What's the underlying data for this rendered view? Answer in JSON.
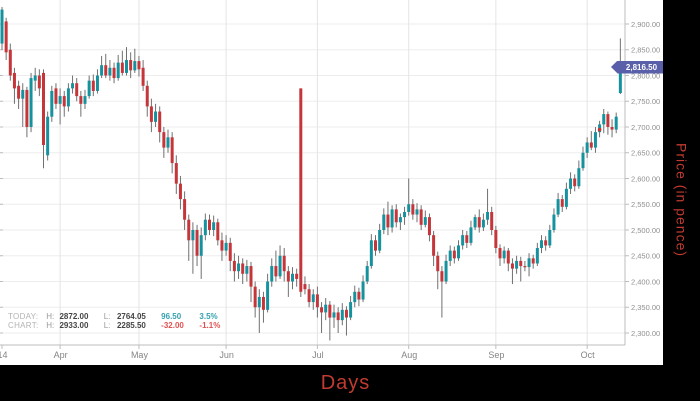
{
  "axis_titles": {
    "x": "Days",
    "y": "Price (in pence)"
  },
  "last_price_label": "2,816.50",
  "legend": {
    "rows": [
      {
        "name": "TODAY:",
        "high_label": "H:",
        "high": "2872.00",
        "low_label": "L:",
        "low": "2764.05",
        "change": "96.50",
        "change_pct": "3.5%",
        "direction": "up"
      },
      {
        "name": "CHART:",
        "high_label": "H:",
        "high": "2933.00",
        "low_label": "L:",
        "low": "2285.50",
        "change": "-32.00",
        "change_pct": "-1.1%",
        "direction": "down"
      }
    ]
  },
  "colors": {
    "up": "#15929e",
    "down": "#c5363a",
    "wick": "#707070",
    "marker": "#d03231",
    "grid_h": "#ededed",
    "grid_v": "#e4e4e4",
    "axis_line": "#bdbdbd",
    "tick_text": "#8f8f8f",
    "month_text": "#858585",
    "badge_bg": "#5a5fa9",
    "badge_text": "#ffffff",
    "axis_title": "#c23a30",
    "frame_bg": "#000000",
    "plot_bg": "#ffffff",
    "legend_label": "#b3b3b3",
    "legend_hl": "#9a9a9a",
    "legend_value": "#454545",
    "legend_up": "#35a0b0",
    "legend_down": "#e05252"
  },
  "chart_data": {
    "type": "candlestick",
    "title": "",
    "xlabel": "Days",
    "ylabel": "Price (in pence)",
    "x_unit": "trading-day",
    "ylim": [
      2281,
      2947
    ],
    "grid": true,
    "legend_position": "bottom-left",
    "y_axis_side": "right",
    "last_price": 2816.5,
    "today_high": 2872.0,
    "today_low": 2764.05,
    "today_change": 96.5,
    "today_change_pct": 3.5,
    "chart_high": 2933.0,
    "chart_low": 2285.5,
    "chart_change": -32.0,
    "chart_change_pct": -1.1,
    "y_ticks": [
      {
        "value": 2900,
        "label": "2,900.00"
      },
      {
        "value": 2850,
        "label": "2,850.00"
      },
      {
        "value": 2800,
        "label": "2,800.00"
      },
      {
        "value": 2750,
        "label": "2,750.00"
      },
      {
        "value": 2700,
        "label": "2,700.00"
      },
      {
        "value": 2650,
        "label": "2,650.00"
      },
      {
        "value": 2600,
        "label": "2,600.00"
      },
      {
        "value": 2550,
        "label": "2,550.00"
      },
      {
        "value": 2500,
        "label": "2,500.00"
      },
      {
        "value": 2450,
        "label": "2,450.00"
      },
      {
        "value": 2400,
        "label": "2,400.00"
      },
      {
        "value": 2350,
        "label": "2,350.00"
      },
      {
        "value": 2300,
        "label": "2,300.00"
      }
    ],
    "x_ticks": [
      {
        "label": "14",
        "index": 0,
        "gridline": false
      },
      {
        "label": "Apr",
        "index": 14,
        "gridline": true
      },
      {
        "label": "May",
        "index": 33,
        "gridline": true
      },
      {
        "label": "Jun",
        "index": 54,
        "gridline": true
      },
      {
        "label": "Jul",
        "index": 76,
        "gridline": true
      },
      {
        "label": "Aug",
        "index": 98,
        "gridline": true
      },
      {
        "label": "Sep",
        "index": 119,
        "gridline": true
      },
      {
        "label": "Oct",
        "index": 141,
        "gridline": true
      }
    ],
    "marker": {
      "index": 144,
      "price": 2695
    },
    "candles_format": [
      "open",
      "high",
      "low",
      "close"
    ],
    "candles": [
      [
        2862,
        2933,
        2850,
        2928
      ],
      [
        2905,
        2912,
        2830,
        2845
      ],
      [
        2850,
        2862,
        2790,
        2800
      ],
      [
        2805,
        2815,
        2745,
        2775
      ],
      [
        2780,
        2790,
        2735,
        2755
      ],
      [
        2755,
        2785,
        2700,
        2772
      ],
      [
        2772,
        2778,
        2680,
        2700
      ],
      [
        2700,
        2805,
        2690,
        2795
      ],
      [
        2790,
        2815,
        2770,
        2800
      ],
      [
        2800,
        2812,
        2760,
        2775
      ],
      [
        2805,
        2812,
        2620,
        2665
      ],
      [
        2645,
        2730,
        2635,
        2720
      ],
      [
        2720,
        2780,
        2710,
        2770
      ],
      [
        2775,
        2785,
        2735,
        2745
      ],
      [
        2745,
        2775,
        2705,
        2760
      ],
      [
        2760,
        2770,
        2720,
        2740
      ],
      [
        2740,
        2785,
        2730,
        2775
      ],
      [
        2775,
        2800,
        2765,
        2785
      ],
      [
        2785,
        2795,
        2750,
        2760
      ],
      [
        2760,
        2770,
        2720,
        2745
      ],
      [
        2745,
        2772,
        2735,
        2760
      ],
      [
        2760,
        2800,
        2755,
        2790
      ],
      [
        2790,
        2802,
        2760,
        2770
      ],
      [
        2770,
        2812,
        2765,
        2800
      ],
      [
        2800,
        2838,
        2795,
        2820
      ],
      [
        2820,
        2842,
        2795,
        2800
      ],
      [
        2800,
        2830,
        2790,
        2815
      ],
      [
        2815,
        2825,
        2785,
        2795
      ],
      [
        2795,
        2840,
        2790,
        2825
      ],
      [
        2825,
        2848,
        2800,
        2805
      ],
      [
        2805,
        2855,
        2800,
        2830
      ],
      [
        2830,
        2845,
        2795,
        2810
      ],
      [
        2810,
        2852,
        2805,
        2828
      ],
      [
        2828,
        2838,
        2798,
        2812
      ],
      [
        2815,
        2830,
        2770,
        2780
      ],
      [
        2780,
        2790,
        2720,
        2740
      ],
      [
        2740,
        2755,
        2690,
        2710
      ],
      [
        2710,
        2745,
        2700,
        2730
      ],
      [
        2730,
        2740,
        2670,
        2690
      ],
      [
        2690,
        2700,
        2640,
        2660
      ],
      [
        2660,
        2695,
        2650,
        2680
      ],
      [
        2680,
        2690,
        2610,
        2630
      ],
      [
        2630,
        2645,
        2570,
        2590
      ],
      [
        2590,
        2605,
        2540,
        2560
      ],
      [
        2560,
        2575,
        2500,
        2520
      ],
      [
        2520,
        2530,
        2440,
        2480
      ],
      [
        2480,
        2515,
        2415,
        2500
      ],
      [
        2500,
        2510,
        2430,
        2450
      ],
      [
        2450,
        2505,
        2405,
        2490
      ],
      [
        2490,
        2532,
        2480,
        2520
      ],
      [
        2520,
        2530,
        2490,
        2500
      ],
      [
        2500,
        2528,
        2488,
        2515
      ],
      [
        2515,
        2522,
        2470,
        2480
      ],
      [
        2480,
        2495,
        2440,
        2460
      ],
      [
        2460,
        2490,
        2450,
        2475
      ],
      [
        2475,
        2485,
        2420,
        2440
      ],
      [
        2440,
        2455,
        2400,
        2420
      ],
      [
        2420,
        2450,
        2405,
        2435
      ],
      [
        2435,
        2445,
        2395,
        2415
      ],
      [
        2415,
        2442,
        2400,
        2430
      ],
      [
        2430,
        2438,
        2360,
        2390
      ],
      [
        2390,
        2400,
        2330,
        2350
      ],
      [
        2350,
        2385,
        2300,
        2370
      ],
      [
        2370,
        2380,
        2320,
        2345
      ],
      [
        2345,
        2415,
        2340,
        2400
      ],
      [
        2400,
        2445,
        2390,
        2430
      ],
      [
        2430,
        2460,
        2400,
        2410
      ],
      [
        2410,
        2470,
        2405,
        2450
      ],
      [
        2450,
        2465,
        2400,
        2420
      ],
      [
        2420,
        2430,
        2370,
        2400
      ],
      [
        2400,
        2428,
        2385,
        2415
      ],
      [
        2415,
        2425,
        2390,
        2405
      ],
      [
        2775,
        2775,
        2370,
        2380
      ],
      [
        2395,
        2410,
        2375,
        2385
      ],
      [
        2385,
        2395,
        2350,
        2360
      ],
      [
        2360,
        2385,
        2345,
        2375
      ],
      [
        2375,
        2390,
        2330,
        2350
      ],
      [
        2350,
        2360,
        2300,
        2340
      ],
      [
        2340,
        2368,
        2325,
        2355
      ],
      [
        2355,
        2362,
        2285.5,
        2330
      ],
      [
        2330,
        2355,
        2310,
        2340
      ],
      [
        2340,
        2350,
        2300,
        2325
      ],
      [
        2325,
        2358,
        2315,
        2345
      ],
      [
        2345,
        2352,
        2295,
        2330
      ],
      [
        2330,
        2372,
        2325,
        2360
      ],
      [
        2360,
        2392,
        2350,
        2380
      ],
      [
        2380,
        2388,
        2352,
        2365
      ],
      [
        2365,
        2412,
        2360,
        2400
      ],
      [
        2400,
        2440,
        2395,
        2430
      ],
      [
        2430,
        2492,
        2425,
        2480
      ],
      [
        2480,
        2490,
        2450,
        2460
      ],
      [
        2460,
        2512,
        2455,
        2500
      ],
      [
        2500,
        2542,
        2492,
        2530
      ],
      [
        2530,
        2555,
        2490,
        2505
      ],
      [
        2505,
        2548,
        2495,
        2540
      ],
      [
        2540,
        2550,
        2505,
        2515
      ],
      [
        2515,
        2532,
        2500,
        2525
      ],
      [
        2525,
        2545,
        2510,
        2535
      ],
      [
        2535,
        2600,
        2528,
        2550
      ],
      [
        2550,
        2560,
        2520,
        2530
      ],
      [
        2530,
        2552,
        2515,
        2540
      ],
      [
        2540,
        2548,
        2500,
        2510
      ],
      [
        2510,
        2538,
        2505,
        2525
      ],
      [
        2525,
        2532,
        2478,
        2490
      ],
      [
        2490,
        2498,
        2430,
        2450
      ],
      [
        2450,
        2458,
        2385,
        2420
      ],
      [
        2420,
        2430,
        2330,
        2400
      ],
      [
        2400,
        2452,
        2395,
        2440
      ],
      [
        2440,
        2470,
        2430,
        2460
      ],
      [
        2460,
        2468,
        2435,
        2445
      ],
      [
        2445,
        2480,
        2440,
        2470
      ],
      [
        2470,
        2500,
        2462,
        2490
      ],
      [
        2490,
        2498,
        2465,
        2475
      ],
      [
        2475,
        2518,
        2470,
        2505
      ],
      [
        2505,
        2530,
        2500,
        2525
      ],
      [
        2525,
        2540,
        2495,
        2505
      ],
      [
        2505,
        2532,
        2498,
        2520
      ],
      [
        2520,
        2580,
        2510,
        2535
      ],
      [
        2535,
        2545,
        2490,
        2500
      ],
      [
        2500,
        2508,
        2455,
        2465
      ],
      [
        2465,
        2472,
        2430,
        2445
      ],
      [
        2445,
        2468,
        2435,
        2460
      ],
      [
        2460,
        2465,
        2420,
        2435
      ],
      [
        2435,
        2445,
        2395,
        2425
      ],
      [
        2425,
        2450,
        2415,
        2440
      ],
      [
        2440,
        2448,
        2400,
        2430
      ],
      [
        2430,
        2440,
        2420,
        2428
      ],
      [
        2428,
        2455,
        2410,
        2445
      ],
      [
        2445,
        2452,
        2425,
        2435
      ],
      [
        2435,
        2475,
        2430,
        2465
      ],
      [
        2465,
        2490,
        2455,
        2480
      ],
      [
        2480,
        2488,
        2460,
        2470
      ],
      [
        2470,
        2510,
        2465,
        2500
      ],
      [
        2500,
        2542,
        2495,
        2530
      ],
      [
        2530,
        2572,
        2525,
        2560
      ],
      [
        2560,
        2568,
        2535,
        2545
      ],
      [
        2545,
        2592,
        2540,
        2580
      ],
      [
        2580,
        2612,
        2570,
        2600
      ],
      [
        2600,
        2608,
        2575,
        2585
      ],
      [
        2585,
        2635,
        2580,
        2620
      ],
      [
        2620,
        2662,
        2615,
        2650
      ],
      [
        2650,
        2680,
        2640,
        2670
      ],
      [
        2670,
        2692,
        2655,
        2660
      ],
      [
        2660,
        2700,
        2650,
        2690
      ],
      [
        2690,
        2712,
        2680,
        2705
      ],
      [
        2705,
        2735,
        2688,
        2725
      ],
      [
        2725,
        2730,
        2685,
        2700
      ],
      [
        2700,
        2715,
        2680,
        2695
      ],
      [
        2695,
        2728,
        2688,
        2720
      ],
      [
        2766,
        2872,
        2764.05,
        2816.5
      ]
    ]
  }
}
